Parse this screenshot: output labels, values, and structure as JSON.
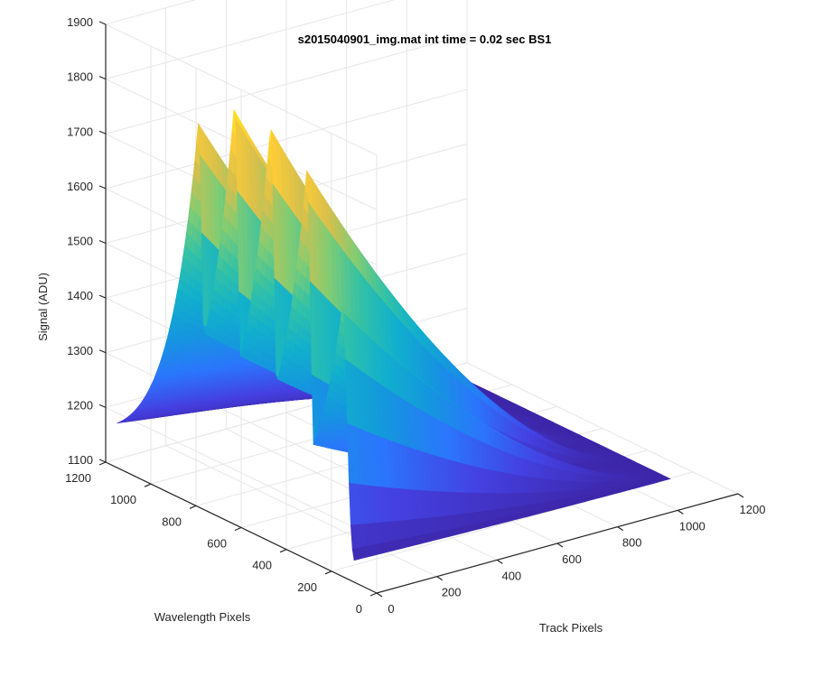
{
  "chart_data": {
    "type": "surface",
    "title": "s2015040901_img.mat int time = 0.02 sec   BS1",
    "xlabel": "Track Pixels",
    "ylabel": "Wavelength Pixels",
    "zlabel": "Signal (ADU)",
    "xlim": [
      0,
      1200
    ],
    "ylim": [
      0,
      1200
    ],
    "zlim": [
      1100,
      1900
    ],
    "xticks": [
      "0",
      "200",
      "400",
      "600",
      "800",
      "1000",
      "1200"
    ],
    "yticks": [
      "0",
      "200",
      "400",
      "600",
      "800",
      "1000",
      "1200"
    ],
    "zticks": [
      "1100",
      "1200",
      "1300",
      "1400",
      "1500",
      "1600",
      "1700",
      "1800",
      "1900"
    ],
    "grid": true,
    "colormap": "parula",
    "baseline": 1130,
    "ridges": [
      {
        "track_start": 0,
        "track_end": 1050,
        "wavelength": 150,
        "peak": 1600
      },
      {
        "track_start": 0,
        "track_end": 1050,
        "wavelength": 310,
        "peak": 1810
      },
      {
        "track_start": 0,
        "track_end": 1050,
        "wavelength": 470,
        "peak": 1860
      },
      {
        "track_start": 0,
        "track_end": 1050,
        "wavelength": 630,
        "peak": 1870
      },
      {
        "track_start": 0,
        "track_end": 1050,
        "wavelength": 790,
        "peak": 1800
      }
    ]
  }
}
